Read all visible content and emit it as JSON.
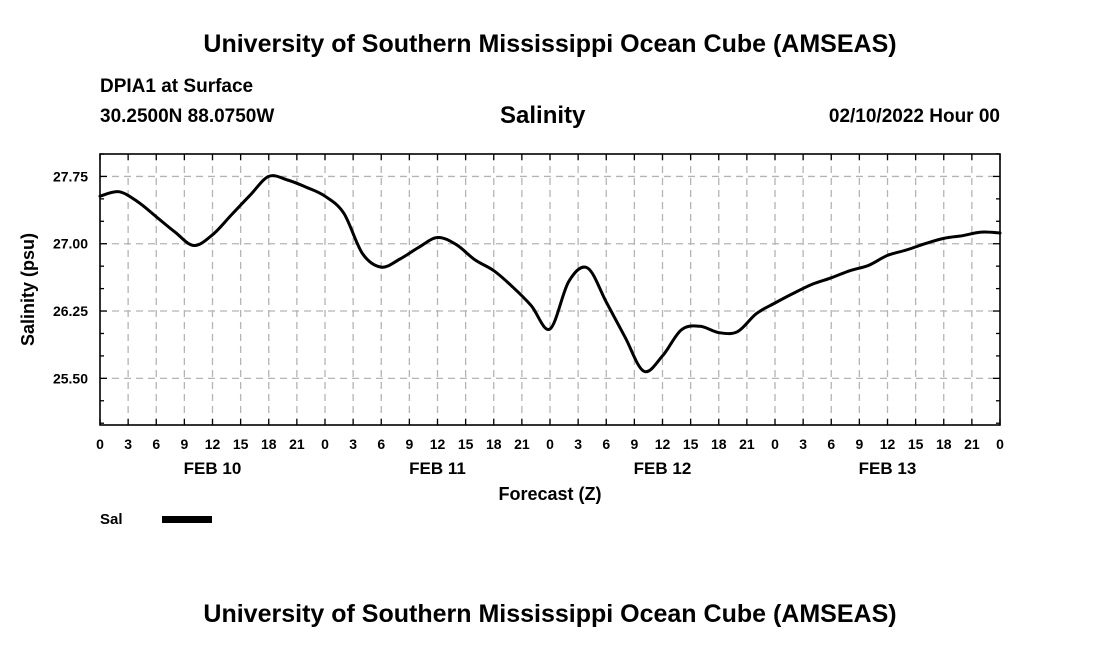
{
  "header": {
    "title": "University of Southern Mississippi Ocean Cube (AMSEAS)",
    "station": "DPIA1 at Surface",
    "coords": "30.2500N  88.0750W",
    "datetime": "02/10/2022 Hour 00"
  },
  "footer": {
    "title": "University of Southern Mississippi Ocean Cube (AMSEAS)"
  },
  "chart_data": {
    "type": "line",
    "title": "Salinity",
    "xlabel": "Forecast (Z)",
    "ylabel": "Salinity (psu)",
    "ylim": [
      24.98,
      28.0
    ],
    "xlim": [
      0,
      96
    ],
    "grid": true,
    "yticks": [
      25.5,
      26.25,
      27.0,
      27.75
    ],
    "ytick_labels": [
      "25.50",
      "26.25",
      "27.00",
      "27.75"
    ],
    "xtick_labels": [
      "0",
      "3",
      "6",
      "9",
      "12",
      "15",
      "18",
      "21",
      "0",
      "3",
      "6",
      "9",
      "12",
      "15",
      "18",
      "21",
      "0",
      "3",
      "6",
      "9",
      "12",
      "15",
      "18",
      "21",
      "0",
      "3",
      "6",
      "9",
      "12",
      "15",
      "18",
      "21",
      "0"
    ],
    "date_labels": [
      {
        "label": "FEB 10",
        "hour": 12
      },
      {
        "label": "FEB 11",
        "hour": 36
      },
      {
        "label": "FEB 12",
        "hour": 60
      },
      {
        "label": "FEB 13",
        "hour": 84
      }
    ],
    "legend": [
      {
        "name": "Sal",
        "color": "#000000"
      }
    ],
    "series": [
      {
        "name": "Sal",
        "x": [
          0,
          2,
          4,
          6,
          8,
          10,
          12,
          14,
          16,
          18,
          20,
          22,
          24,
          26,
          28,
          30,
          32,
          34,
          36,
          38,
          40,
          42,
          44,
          46,
          48,
          50,
          52,
          54,
          56,
          58,
          60,
          62,
          64,
          66,
          68,
          70,
          72,
          74,
          76,
          78,
          80,
          82,
          84,
          86,
          88,
          90,
          92,
          94,
          96
        ],
        "values": [
          27.53,
          27.58,
          27.47,
          27.3,
          27.13,
          26.98,
          27.1,
          27.32,
          27.54,
          27.75,
          27.71,
          27.63,
          27.53,
          27.34,
          26.89,
          26.74,
          26.83,
          26.96,
          27.07,
          26.99,
          26.82,
          26.7,
          26.52,
          26.31,
          26.05,
          26.58,
          26.73,
          26.35,
          25.96,
          25.58,
          25.75,
          26.04,
          26.08,
          26.01,
          26.02,
          26.22,
          26.34,
          26.45,
          26.55,
          26.62,
          26.7,
          26.76,
          26.87,
          26.93,
          27.0,
          27.06,
          27.09,
          27.13,
          27.12
        ]
      }
    ]
  }
}
